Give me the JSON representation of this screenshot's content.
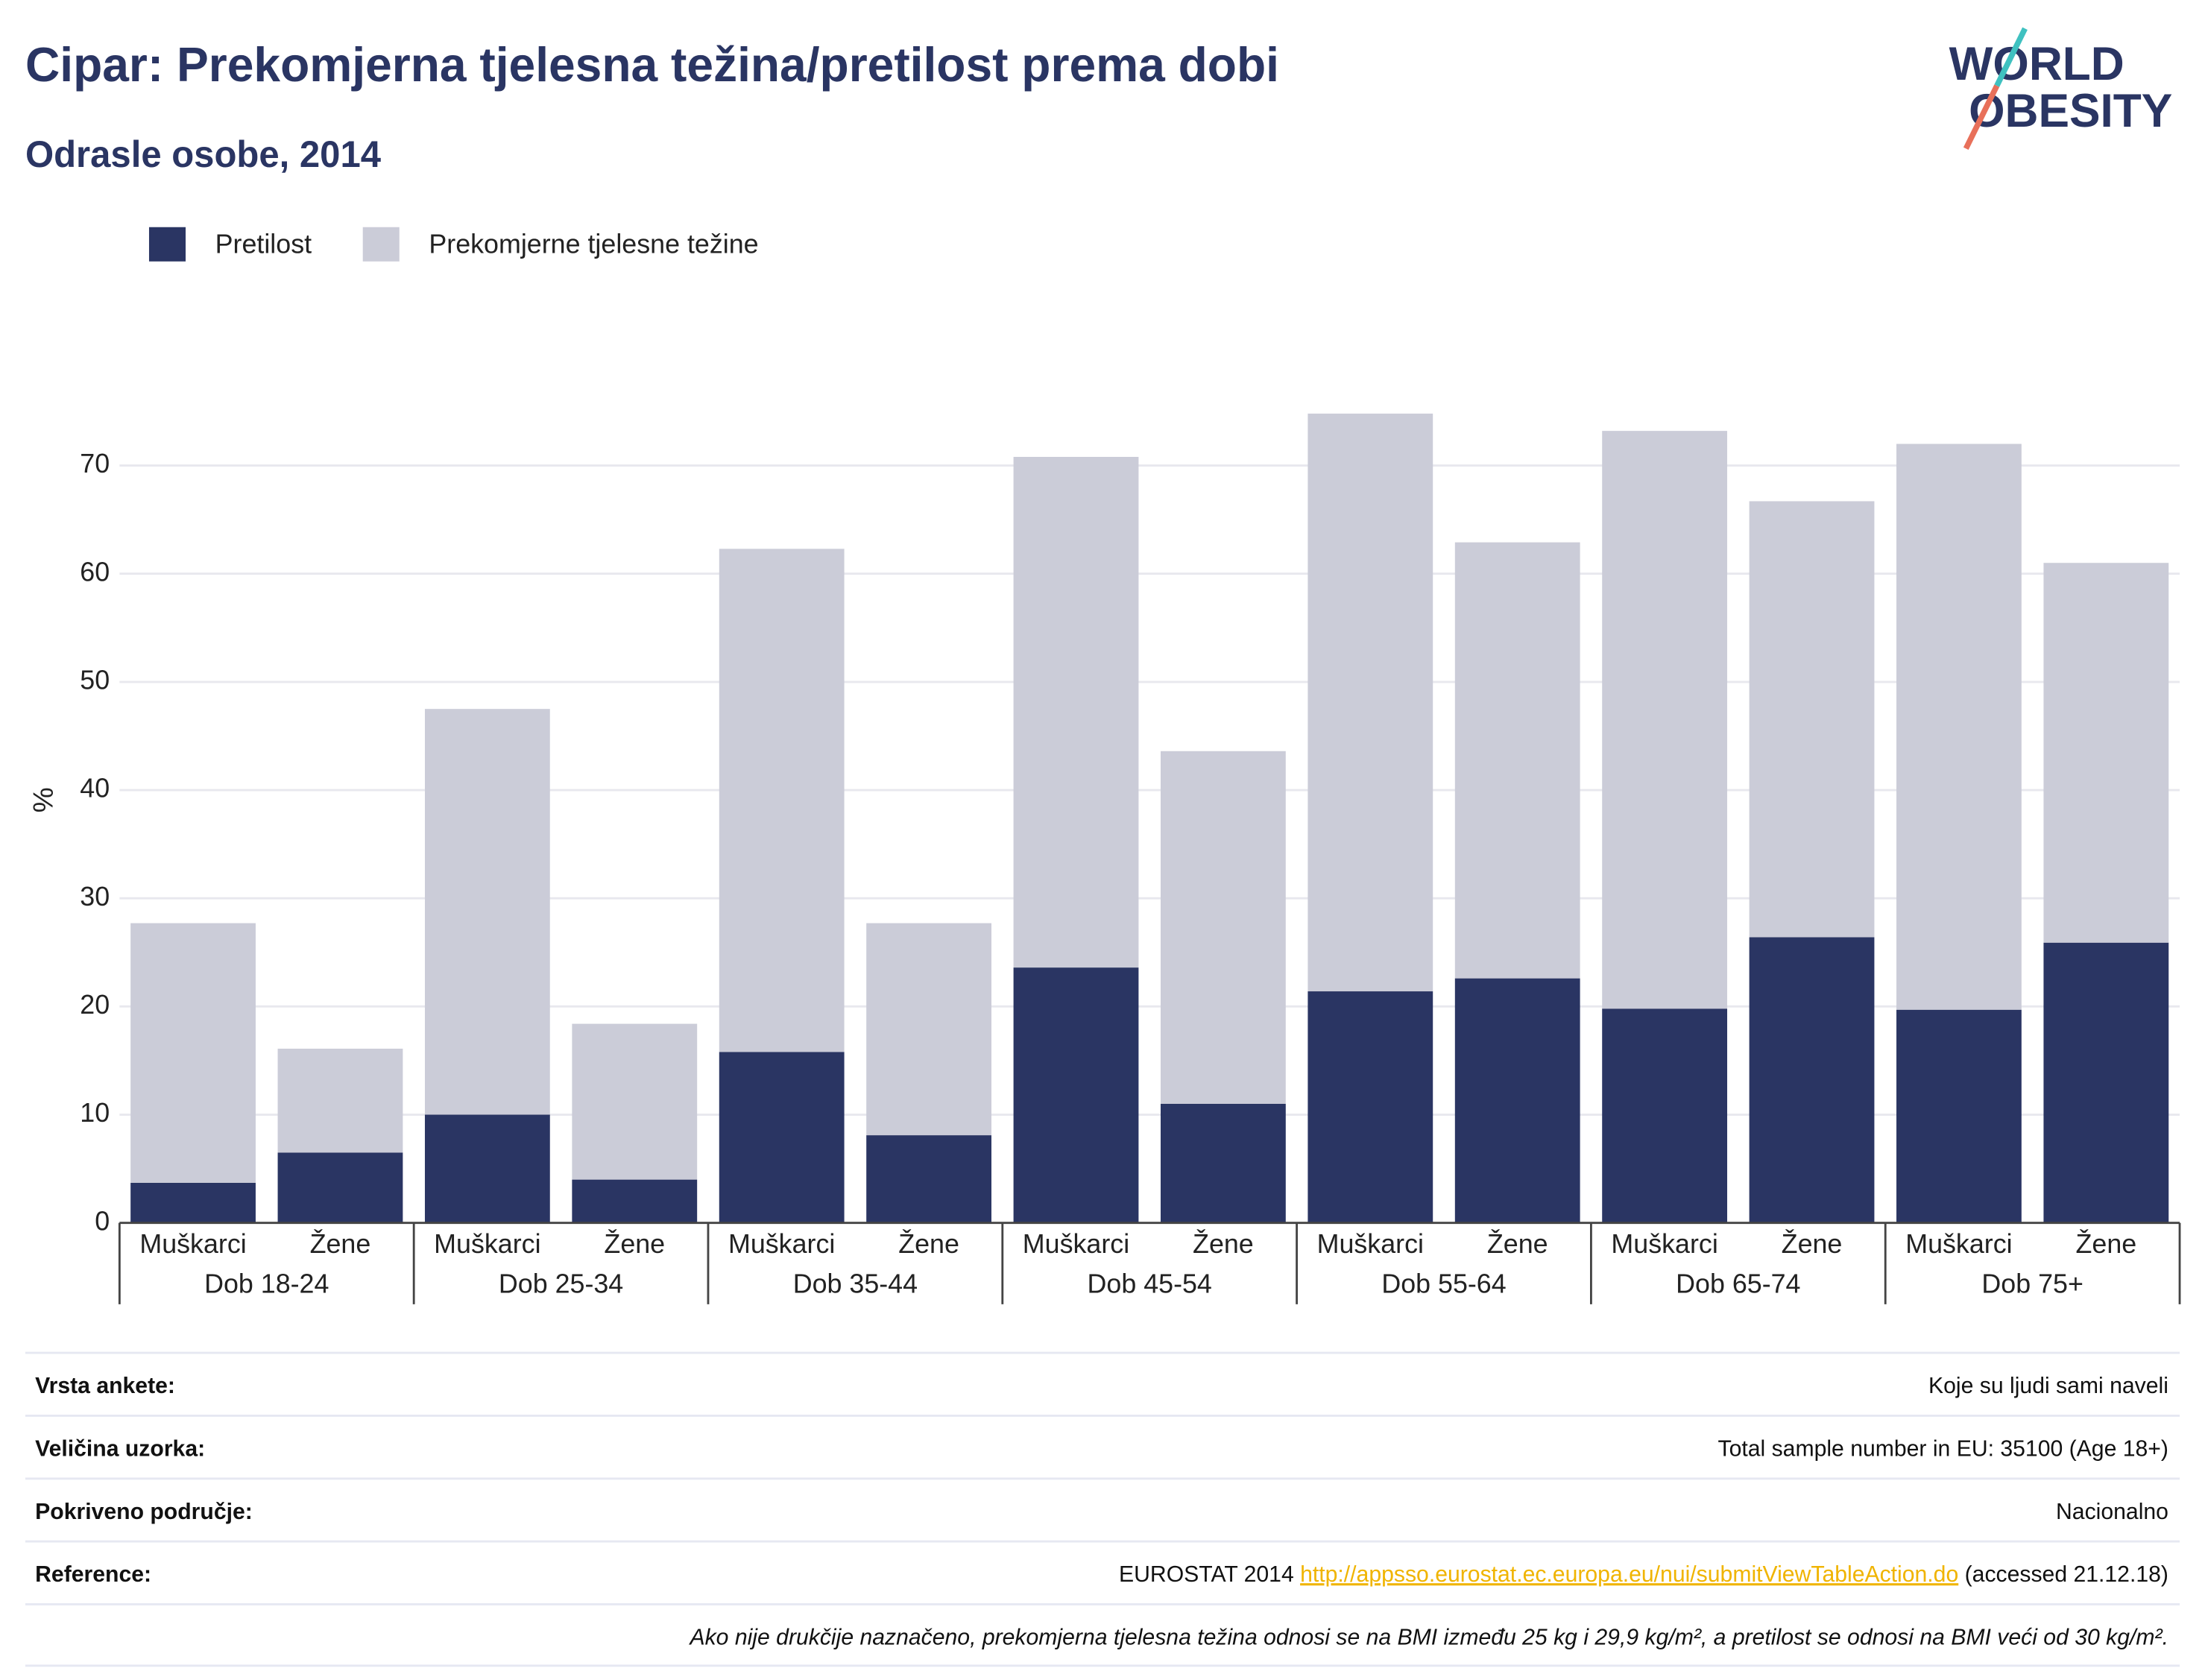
{
  "chart_data": {
    "type": "stacked_bar",
    "title": "Cipar: Prekomjerna tjelesna težina/pretilost prema dobi",
    "subtitle": "Odrasle osobe, 2014",
    "y_label": "%",
    "categories": [
      "Muškarci",
      "Žene",
      "Muškarci",
      "Žene",
      "Muškarci",
      "Žene",
      "Muškarci",
      "Žene",
      "Muškarci",
      "Žene",
      "Muškarci",
      "Žene",
      "Muškarci",
      "Žene"
    ],
    "groups": [
      "Dob 18-24",
      "Dob 25-34",
      "Dob 35-44",
      "Dob 45-54",
      "Dob 55-64",
      "Dob 65-74",
      "Dob 75+"
    ],
    "series": [
      {
        "name": "Pretilost",
        "color": "#2a3563",
        "values": [
          3.7,
          6.5,
          10.0,
          4.0,
          15.8,
          8.1,
          23.6,
          11.0,
          21.4,
          22.6,
          19.8,
          26.4,
          19.7,
          25.9
        ]
      },
      {
        "name": "Prekomjerne tjelesne težine",
        "color": "#cbccd8",
        "values": [
          24.0,
          9.6,
          37.5,
          14.4,
          46.5,
          19.6,
          47.2,
          32.6,
          53.4,
          40.3,
          53.4,
          40.3,
          52.3,
          35.1
        ]
      }
    ],
    "ylim": [
      0,
      75
    ],
    "yticks": [
      0,
      10,
      20,
      30,
      40,
      50,
      60,
      70
    ],
    "grid": true,
    "legend": "top-left"
  },
  "logo": [
    "WORLD",
    "OBESITY"
  ],
  "info": [
    {
      "label": "Vrsta ankete:",
      "value": "Koje su ljudi sami naveli"
    },
    {
      "label": "Veličina uzorka:",
      "value": "Total sample number in EU: 35100 (Age 18+)"
    },
    {
      "label": "Pokriveno područje:",
      "value": "Nacionalno"
    },
    {
      "label": "Reference:",
      "value": [
        "EUROSTAT 2014 ",
        "http://appsso.eurostat.ec.europa.eu/nui/submitViewTableAction.do",
        " (accessed 21.12.18)"
      ]
    }
  ],
  "note": "Ako nije drukčije naznačeno, prekomjerna tjelesna težina odnosi se na BMI između 25 kg i 29,9 kg/m², a pretilost se odnosi na BMI veći od 30 kg/m²."
}
